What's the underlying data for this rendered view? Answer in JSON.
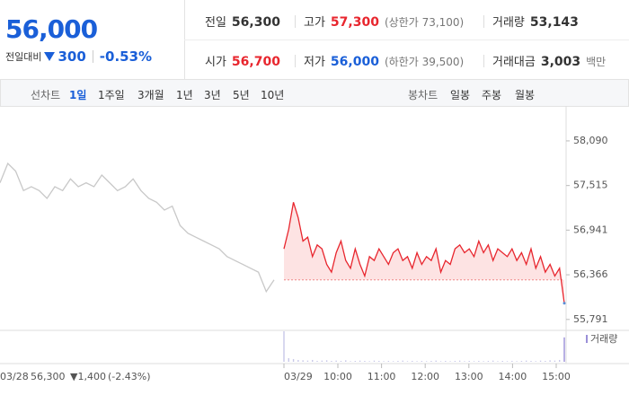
{
  "quote": {
    "price": "56,000",
    "change_label": "전일대비",
    "change": "300",
    "change_pct": "-0.53%"
  },
  "stats": [
    [
      {
        "label": "전일",
        "value": "56,300"
      },
      {
        "label": "고가",
        "value": "57,300",
        "sub": "(상한가 73,100)"
      },
      {
        "label": "거래량",
        "value": "53,143"
      }
    ],
    [
      {
        "label": "시가",
        "value": "56,700"
      },
      {
        "label": "저가",
        "value": "56,000",
        "sub": "(하한가 39,500)"
      },
      {
        "label": "거래대금",
        "value": "3,003",
        "sub": "백만"
      }
    ]
  ],
  "tabs": {
    "line_label": "선차트",
    "periods": [
      "1일",
      "1주일",
      "3개월",
      "1년",
      "3년",
      "5년",
      "10년"
    ],
    "candle_label": "봉차트",
    "candles": [
      "일봉",
      "주봉",
      "월봉"
    ]
  },
  "chart_data": {
    "type": "line",
    "series": [
      {
        "name": "03/28",
        "color": "#c8c8c8",
        "values": [
          57550,
          57800,
          57700,
          57450,
          57500,
          57450,
          57350,
          57500,
          57450,
          57600,
          57500,
          57550,
          57500,
          57650,
          57550,
          57450,
          57500,
          57600,
          57450,
          57350,
          57300,
          57200,
          57250,
          57000,
          56900,
          56850,
          56800,
          56750,
          56700,
          56600,
          56550,
          56500,
          56450,
          56400,
          56150,
          56300
        ]
      },
      {
        "name": "03/29",
        "color": "#e8262e",
        "values": [
          56700,
          56950,
          57300,
          57100,
          56800,
          56850,
          56600,
          56750,
          56700,
          56500,
          56400,
          56650,
          56800,
          56550,
          56450,
          56700,
          56500,
          56350,
          56600,
          56550,
          56700,
          56600,
          56500,
          56650,
          56700,
          56550,
          56600,
          56450,
          56650,
          56500,
          56600,
          56550,
          56700,
          56400,
          56550,
          56500,
          56700,
          56750,
          56650,
          56700,
          56600,
          56800,
          56650,
          56750,
          56550,
          56700,
          56650,
          56600,
          56700,
          56550,
          56650,
          56500,
          56700,
          56450,
          56600,
          56400,
          56500,
          56350,
          56450,
          56000
        ]
      }
    ],
    "baseline": 56300,
    "ylim": [
      55650,
      58540
    ],
    "yticks": [
      {
        "value": 58090,
        "label": "58,090"
      },
      {
        "value": 57515,
        "label": "57,515"
      },
      {
        "value": 56941,
        "label": "56,941"
      },
      {
        "value": 56366,
        "label": "56,366"
      },
      {
        "value": 55791,
        "label": "55,791"
      }
    ],
    "xticks": [
      "10:00",
      "11:00",
      "12:00",
      "13:00",
      "14:00",
      "15:00"
    ],
    "volume_label": "거래량",
    "volume": [
      100,
      12,
      9,
      6,
      5,
      4,
      6,
      3,
      4,
      5,
      3,
      4,
      3,
      5,
      2,
      3,
      4,
      3,
      2,
      4,
      3,
      2,
      3,
      2,
      3,
      4,
      2,
      3,
      2,
      3,
      2,
      3,
      4,
      2,
      3,
      2,
      3,
      4,
      2,
      3,
      2,
      3,
      2,
      3,
      4,
      2,
      3,
      2,
      3,
      2,
      3,
      4,
      3,
      2,
      4,
      3,
      5,
      4,
      6,
      80
    ],
    "prev_info": {
      "close": "56,300",
      "change": "▼1,400",
      "pct": "(-2.43%)"
    }
  }
}
